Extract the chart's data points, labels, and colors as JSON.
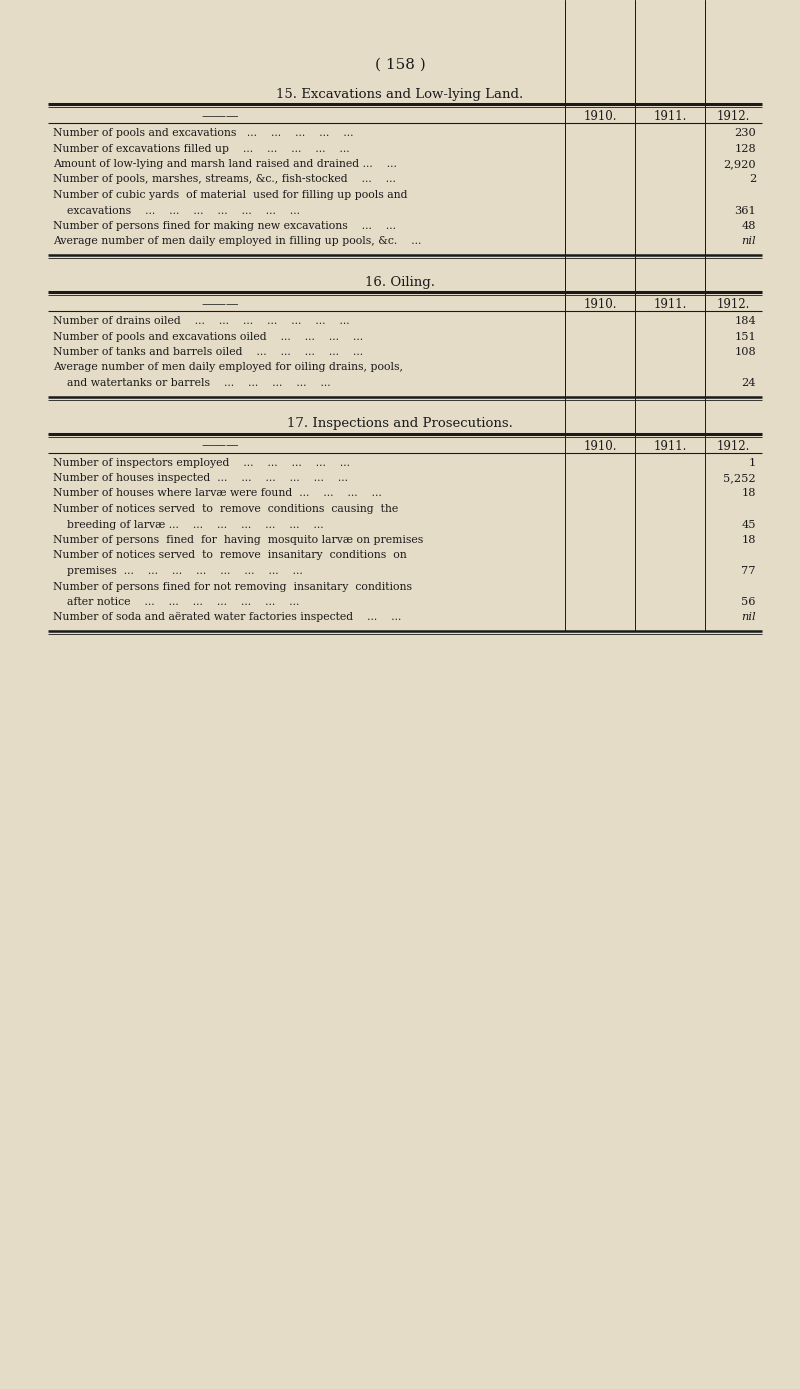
{
  "bg_color": "#e5dcc8",
  "text_color": "#1a1a1a",
  "page_header": "( 158 )",
  "section1_title": "15. Excavations and Low-lying Land.",
  "section2_title": "16. Oiling.",
  "section3_title": "17. Inspections and Prosecutions.",
  "col_headers": [
    "1910.",
    "1911.",
    "1912."
  ],
  "section1_rows": [
    {
      "label": "Number of pools and excavations   ...    ...    ...    ...    ...",
      "val3": "230"
    },
    {
      "label": "Number of excavations filled up    ...    ...    ...    ...    ...",
      "val3": "128"
    },
    {
      "label": "Amount of low-lying and marsh land raised and drained ...    ...",
      "val3": "2,920"
    },
    {
      "label": "Number of pools, marshes, streams, &c., fish-stocked    ...    ...",
      "val3": "2"
    },
    {
      "label": "Number of cubic yards  of material  used for filling up pools and",
      "val3": ""
    },
    {
      "label": "    excavations    ...    ...    ...    ...    ...    ...    ...",
      "val3": "361"
    },
    {
      "label": "Number of persons fined for making new excavations    ...    ...",
      "val3": "48"
    },
    {
      "label": "Average number of men daily employed in filling up pools, &c.    ...",
      "val3": "nil"
    }
  ],
  "section2_rows": [
    {
      "label": "Number of drains oiled    ...    ...    ...    ...    ...    ...    ...",
      "val3": "184"
    },
    {
      "label": "Number of pools and excavations oiled    ...    ...    ...    ...",
      "val3": "151"
    },
    {
      "label": "Number of tanks and barrels oiled    ...    ...    ...    ...    ...",
      "val3": "108"
    },
    {
      "label": "Average number of men daily employed for oiling drains, pools,",
      "val3": ""
    },
    {
      "label": "    and watertanks or barrels    ...    ...    ...    ...    ...",
      "val3": "24"
    }
  ],
  "section3_rows": [
    {
      "label": "Number of inspectors employed    ...    ...    ...    ...    ...",
      "val3": "1"
    },
    {
      "label": "Number of houses inspected  ...    ...    ...    ...    ...    ...",
      "val3": "5,252"
    },
    {
      "label": "Number of houses where larvæ were found  ...    ...    ...    ...",
      "val3": "18"
    },
    {
      "label": "Number of notices served  to  remove  conditions  causing  the",
      "val3": ""
    },
    {
      "label": "    breeding of larvæ ...    ...    ...    ...    ...    ...    ...",
      "val3": "45"
    },
    {
      "label": "Number of persons  fined  for  having  mosquito larvæ on premises",
      "val3": "18"
    },
    {
      "label": "Number of notices served  to  remove  insanitary  conditions  on",
      "val3": ""
    },
    {
      "label": "    premises  ...    ...    ...    ...    ...    ...    ...    ...",
      "val3": "77"
    },
    {
      "label": "Number of persons fined for not removing  insanitary  conditions",
      "val3": ""
    },
    {
      "label": "    after notice    ...    ...    ...    ...    ...    ...    ...",
      "val3": "56"
    },
    {
      "label": "Number of soda and aërated water factories inspected    ...    ...",
      "val3": "nil"
    }
  ]
}
